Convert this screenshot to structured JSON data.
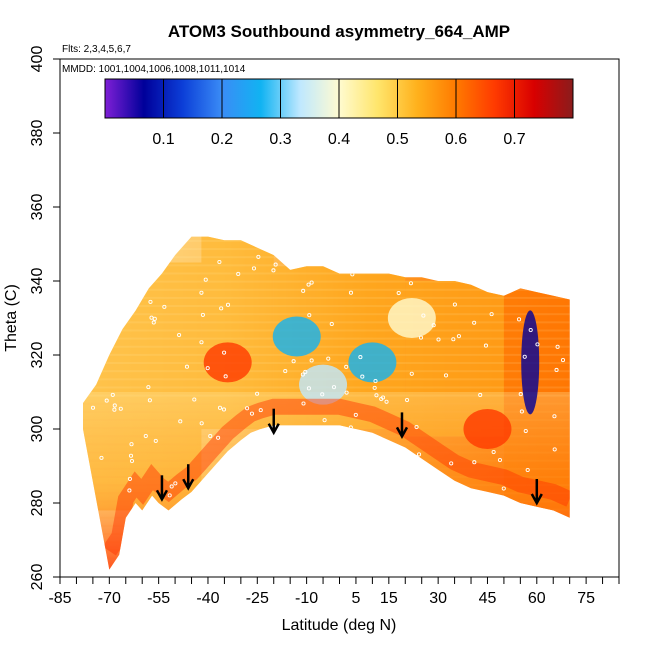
{
  "chart_data": {
    "type": "heatmap",
    "title": "ATOM3 Southbound asymmetry_664_AMP",
    "flights_note": "Flts: 2,3,4,5,6,7",
    "dates_note": "MMDD: 1001,1004,1006,1008,1011,1014",
    "xlabel": "Latitude (deg N)",
    "ylabel": "Theta (C)",
    "xlim": [
      -85,
      85
    ],
    "ylim": [
      260,
      400
    ],
    "x_ticks": [
      -85,
      -70,
      -55,
      -40,
      -25,
      -10,
      5,
      15,
      30,
      45,
      60,
      75
    ],
    "x_tick_labels": [
      "-85",
      "-70",
      "-55",
      "-40",
      "-25",
      "-10",
      "5",
      "15",
      "30",
      "45",
      "60",
      "75"
    ],
    "y_ticks": [
      260,
      280,
      300,
      320,
      340,
      360,
      380,
      400
    ],
    "y_tick_labels": [
      "260",
      "280",
      "300",
      "320",
      "340",
      "360",
      "380",
      "400"
    ],
    "colorbar": {
      "range": [
        0.0,
        0.8
      ],
      "ticks": [
        0.1,
        0.2,
        0.3,
        0.4,
        0.5,
        0.6,
        0.7
      ],
      "tick_labels": [
        "0.1",
        "0.2",
        "0.3",
        "0.4",
        "0.5",
        "0.6",
        "0.7"
      ],
      "colors": [
        "#7f1fd6",
        "#00009a",
        "#0c3fd8",
        "#3a8cf6",
        "#11b3f2",
        "#bfe8ff",
        "#fffbd0",
        "#ffe56b",
        "#ffb11c",
        "#ff7a00",
        "#ff3a00",
        "#d80000",
        "#8b1c1c"
      ]
    },
    "surface_outline": {
      "lat": [
        -70,
        -67,
        -65,
        -62,
        -60,
        -57,
        -55,
        -52,
        -48,
        -45,
        -42,
        -38,
        -34,
        -30,
        -27,
        -24,
        -20,
        -15,
        -10,
        -5,
        0,
        5,
        10,
        15,
        20,
        25,
        30,
        35,
        40,
        45,
        50,
        55,
        60,
        65,
        70
      ],
      "theta": [
        262,
        266,
        276,
        280,
        278,
        282,
        280,
        278,
        281,
        283,
        286,
        290,
        294,
        297,
        299,
        300,
        301,
        301,
        301,
        301,
        301,
        300,
        299,
        297,
        295,
        292,
        289,
        286,
        284,
        283,
        282,
        280,
        279,
        278,
        276
      ]
    },
    "top_outline": {
      "lat": [
        -78,
        -74,
        -70,
        -66,
        -62,
        -58,
        -54,
        -50,
        -45,
        -40,
        -35,
        -30,
        -25,
        -20,
        -15,
        -10,
        -5,
        0,
        5,
        10,
        15,
        20,
        25,
        30,
        35,
        40,
        45,
        50,
        55,
        60,
        65,
        70
      ],
      "theta": [
        307,
        312,
        320,
        327,
        332,
        338,
        342,
        347,
        352,
        352,
        351,
        351,
        349,
        347,
        343,
        344,
        344,
        342,
        342,
        342,
        342,
        341,
        341,
        340,
        340,
        339,
        337,
        336,
        338,
        337,
        336,
        335
      ]
    },
    "regions": [
      {
        "lat": [
          -78,
          -42
        ],
        "theta": [
          278,
          345
        ],
        "value": 0.55
      },
      {
        "lat": [
          -42,
          -20
        ],
        "theta": [
          300,
          352
        ],
        "value": 0.52
      },
      {
        "lat": [
          -20,
          20
        ],
        "theta": [
          300,
          344
        ],
        "value": 0.5
      },
      {
        "lat": [
          20,
          50
        ],
        "theta": [
          298,
          340
        ],
        "value": 0.55
      },
      {
        "lat": [
          50,
          72
        ],
        "theta": [
          278,
          338
        ],
        "value": 0.6
      }
    ],
    "features": [
      {
        "lat": -13,
        "theta": 325,
        "value": 0.3
      },
      {
        "lat": -5,
        "theta": 312,
        "value": 0.35
      },
      {
        "lat": 10,
        "theta": 318,
        "value": 0.3
      },
      {
        "lat": 22,
        "theta": 330,
        "value": 0.38
      },
      {
        "lat": 58,
        "theta": 318,
        "value": 0.08
      },
      {
        "lat": -34,
        "theta": 318,
        "value": 0.65
      },
      {
        "lat": 45,
        "theta": 300,
        "value": 0.68
      }
    ],
    "arrows": [
      {
        "lat": -54,
        "theta_tip": 281
      },
      {
        "lat": -46,
        "theta_tip": 284
      },
      {
        "lat": -20,
        "theta_tip": 299
      },
      {
        "lat": 19,
        "theta_tip": 298
      },
      {
        "lat": 60,
        "theta_tip": 280
      }
    ]
  }
}
